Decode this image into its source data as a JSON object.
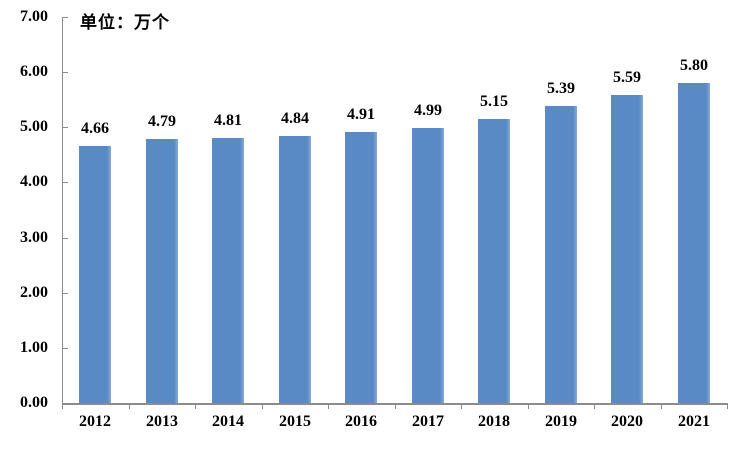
{
  "chart_data": {
    "type": "bar",
    "title": "单位：万个",
    "categories": [
      "2012",
      "2013",
      "2014",
      "2015",
      "2016",
      "2017",
      "2018",
      "2019",
      "2020",
      "2021"
    ],
    "values": [
      4.66,
      4.79,
      4.81,
      4.84,
      4.91,
      4.99,
      5.15,
      5.39,
      5.59,
      5.8
    ],
    "value_labels": [
      "4.66",
      "4.79",
      "4.81",
      "4.84",
      "4.91",
      "4.99",
      "5.15",
      "5.39",
      "5.59",
      "5.80"
    ],
    "xlabel": "",
    "ylabel": "",
    "ylim": [
      0,
      7
    ],
    "ytick_step": 1,
    "ytick_labels": [
      "0.00",
      "1.00",
      "2.00",
      "3.00",
      "4.00",
      "5.00",
      "6.00",
      "7.00"
    ],
    "grid": "off",
    "legend": "none",
    "bar_color": "#5a8ac6",
    "axis_color": "#8c8c8c",
    "text_color": "#000000"
  }
}
